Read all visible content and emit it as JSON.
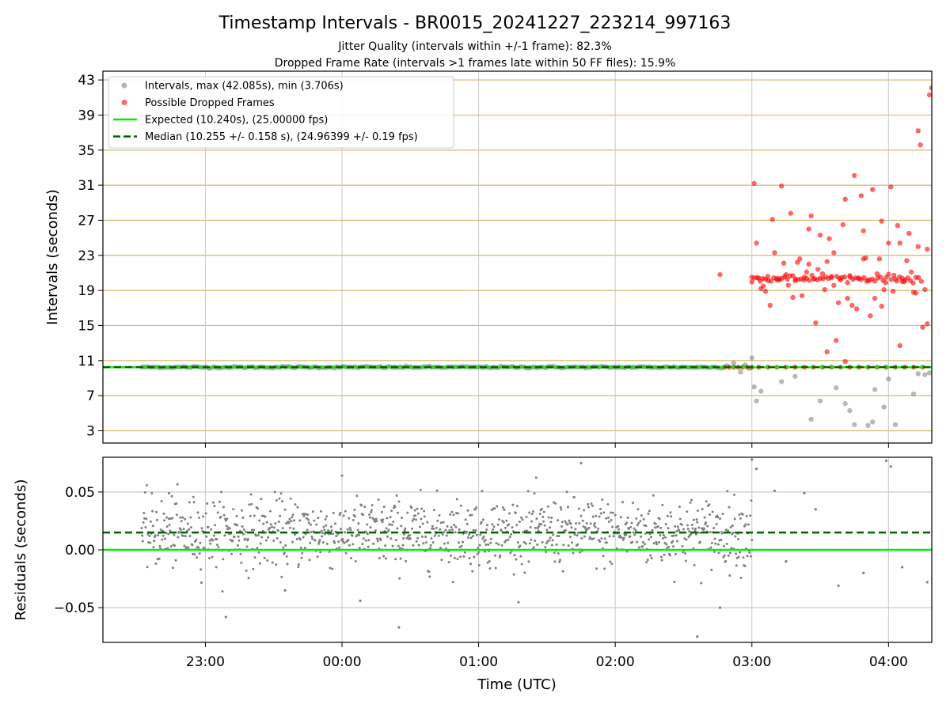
{
  "title": "Timestamp Intervals - BR0015_20241227_223214_997163",
  "subtitle1": "Jitter Quality (intervals within +/-1 frame): 82.3%",
  "subtitle2": "Dropped Frame Rate (intervals >1 frames late within 50 FF files): 15.9%",
  "xlabel": "Time (UTC)",
  "colors": {
    "intervals": "#808080",
    "dropped": "#ff0000",
    "expected": "#00ee00",
    "median": "#006400",
    "grid_top": "#d4b86a",
    "grid_bottom": "#cccccc"
  },
  "chart_data": [
    {
      "type": "scatter",
      "ylabel": "Intervals (seconds)",
      "xlim": [
        "22:15",
        "04:19"
      ],
      "ylim": [
        1.6,
        44.0
      ],
      "yticks": [
        "3",
        "7",
        "11",
        "15",
        "19",
        "23",
        "27",
        "31",
        "35",
        "39",
        "43"
      ],
      "ytick_values": [
        3,
        7,
        11,
        15,
        19,
        23,
        27,
        31,
        35,
        39,
        43
      ],
      "xticks": [
        "23:00",
        "00:00",
        "01:00",
        "02:00",
        "03:00",
        "04:00"
      ],
      "xtick_values": [
        "23:00",
        "00:00",
        "01:00",
        "02:00",
        "03:00",
        "04:00"
      ],
      "grid": "horizontal lines at every y tick, vertical lines at every x tick",
      "legend_position": "top-left",
      "legend": [
        "Intervals, max (42.085s), min (3.706s)",
        "Possible Dropped Frames",
        "Expected (10.240s), (25.00000 fps)",
        "Median (10.255 +/- 0.158 s), (24.96399 +/- 0.19 fps)"
      ],
      "expected_line": 10.24,
      "median_line": 10.255,
      "series": [
        {
          "name": "Intervals",
          "note": "dense band of points at about 10.25 s from 22:32 to 02:48",
          "band_x": [
            "22:32",
            "02:48"
          ],
          "band_y": 10.25,
          "x": [
            "02:49",
            "02:52",
            "02:55",
            "02:57",
            "02:59",
            "03:00",
            "03:01",
            "03:02",
            "03:04",
            "03:13",
            "03:19",
            "03:26",
            "03:30",
            "03:37",
            "03:41",
            "03:43",
            "03:45",
            "03:51",
            "03:53",
            "03:54",
            "03:58",
            "04:00",
            "04:03",
            "04:11",
            "04:13",
            "04:16",
            "04:18"
          ],
          "y": [
            10.4,
            10.7,
            9.7,
            10.5,
            10.1,
            11.3,
            8.0,
            6.4,
            7.5,
            8.6,
            9.2,
            4.3,
            6.4,
            7.9,
            6.1,
            5.3,
            3.7,
            3.6,
            4.0,
            7.7,
            5.7,
            8.9,
            3.7,
            7.2,
            9.5,
            9.4,
            9.6
          ]
        },
        {
          "name": "Possible Dropped Frames",
          "x": [
            "02:48",
            "02:50",
            "02:52",
            "02:54",
            "02:56",
            "02:58",
            "03:00",
            "03:00",
            "03:01",
            "03:03",
            "03:05",
            "03:07",
            "03:09",
            "03:11",
            "03:13",
            "03:15",
            "03:17",
            "03:19",
            "03:21",
            "03:23",
            "03:25",
            "03:27",
            "03:29",
            "03:31",
            "03:33",
            "03:35",
            "03:37",
            "03:39",
            "03:41",
            "03:43",
            "03:45",
            "03:47",
            "03:49",
            "03:51",
            "03:53",
            "03:55",
            "03:57",
            "03:59",
            "04:01",
            "04:03",
            "04:05",
            "04:07",
            "04:09",
            "04:11",
            "04:13",
            "04:15",
            "04:17",
            "04:18",
            "04:19",
            "03:02",
            "03:04",
            "03:06",
            "03:08",
            "03:10",
            "03:12",
            "03:14",
            "03:16",
            "03:18",
            "03:20",
            "03:22",
            "03:24",
            "03:26",
            "03:28",
            "03:30",
            "03:32",
            "03:34",
            "03:36",
            "03:38",
            "03:40",
            "03:42",
            "03:44",
            "03:46",
            "03:48",
            "03:50",
            "03:52",
            "03:54",
            "03:56",
            "03:58",
            "04:00",
            "04:02",
            "04:04",
            "04:06",
            "04:08",
            "04:10",
            "04:12",
            "04:14",
            "04:16",
            "03:03",
            "03:07",
            "03:11",
            "03:15",
            "03:19",
            "03:23",
            "03:27",
            "03:31",
            "03:35",
            "03:39",
            "03:43",
            "03:47",
            "03:51",
            "03:55",
            "03:59",
            "04:03",
            "04:07",
            "04:11",
            "04:15",
            "02:46",
            "03:25",
            "03:33",
            "03:41",
            "03:49",
            "03:57",
            "04:05",
            "04:13",
            "04:17"
          ],
          "y": [
            10.25,
            10.25,
            10.25,
            10.25,
            10.25,
            10.25,
            10.25,
            20.5,
            31.2,
            20.4,
            19.5,
            20.6,
            27.1,
            20.2,
            30.9,
            20.8,
            27.8,
            20.1,
            22.6,
            20.5,
            26.0,
            20.3,
            21.4,
            20.9,
            22.3,
            20.6,
            13.3,
            20.2,
            29.4,
            20.7,
            32.1,
            20.4,
            25.8,
            20.2,
            30.5,
            20.9,
            17.2,
            20.5,
            30.8,
            20.3,
            24.4,
            20.0,
            25.5,
            18.8,
            37.2,
            14.8,
            23.7,
            41.3,
            42.1,
            24.4,
            19.2,
            18.9,
            17.3,
            23.3,
            20.2,
            22.1,
            19.6,
            18.2,
            22.2,
            18.4,
            21.1,
            27.5,
            15.3,
            25.3,
            19.1,
            24.9,
            23.3,
            17.6,
            26.5,
            18.1,
            17.3,
            16.9,
            29.8,
            22.7,
            16.1,
            18.1,
            22.6,
            19.1,
            24.4,
            18.9,
            26.4,
            20.0,
            22.4,
            21.1,
            18.7,
            35.6,
            19.1,
            10.25,
            10.25,
            10.25,
            10.25,
            10.25,
            10.25,
            10.25,
            10.25,
            10.25,
            10.25,
            10.25,
            10.25,
            10.25,
            10.25,
            10.25,
            10.25,
            10.25,
            10.25,
            10.25,
            20.8,
            22.0,
            12.0,
            10.9,
            22.6,
            26.9,
            12.7,
            24.0,
            15.2
          ]
        }
      ]
    },
    {
      "type": "scatter",
      "ylabel": "Residuals (seconds)",
      "xlim": [
        "22:15",
        "04:19"
      ],
      "ylim": [
        -0.08,
        0.08
      ],
      "yticks": [
        "−0.05",
        "0.00",
        "0.05"
      ],
      "ytick_values": [
        -0.05,
        0.0,
        0.05
      ],
      "xticks": [
        "23:00",
        "00:00",
        "01:00",
        "02:00",
        "03:00",
        "04:00"
      ],
      "xtick_values": [
        "23:00",
        "00:00",
        "01:00",
        "02:00",
        "03:00",
        "04:00"
      ],
      "grid": "horizontal lines at every y tick, vertical lines at every x tick",
      "expected_line": 0.0,
      "median_line": 0.015,
      "series": [
        {
          "name": "Residuals",
          "note": "dense cloud of points around +0.015 s (mostly -0.01 to +0.04) from 22:32 to 03:00",
          "band_x": [
            "22:32",
            "03:00"
          ],
          "band_center": 0.015,
          "band_spread": 0.015,
          "x": [
            "22:44",
            "23:09",
            "23:35",
            "00:08",
            "00:25",
            "01:45",
            "02:36",
            "02:46",
            "03:00",
            "03:02",
            "03:10",
            "03:15",
            "03:23",
            "03:28",
            "03:38",
            "03:49",
            "03:59",
            "04:01",
            "04:06",
            "04:17"
          ],
          "y": [
            0.049,
            -0.058,
            -0.035,
            -0.044,
            -0.067,
            0.075,
            -0.075,
            -0.05,
            0.078,
            0.07,
            0.051,
            -0.01,
            0.049,
            0.035,
            -0.031,
            -0.02,
            0.077,
            0.072,
            -0.015,
            -0.028
          ]
        }
      ]
    }
  ]
}
